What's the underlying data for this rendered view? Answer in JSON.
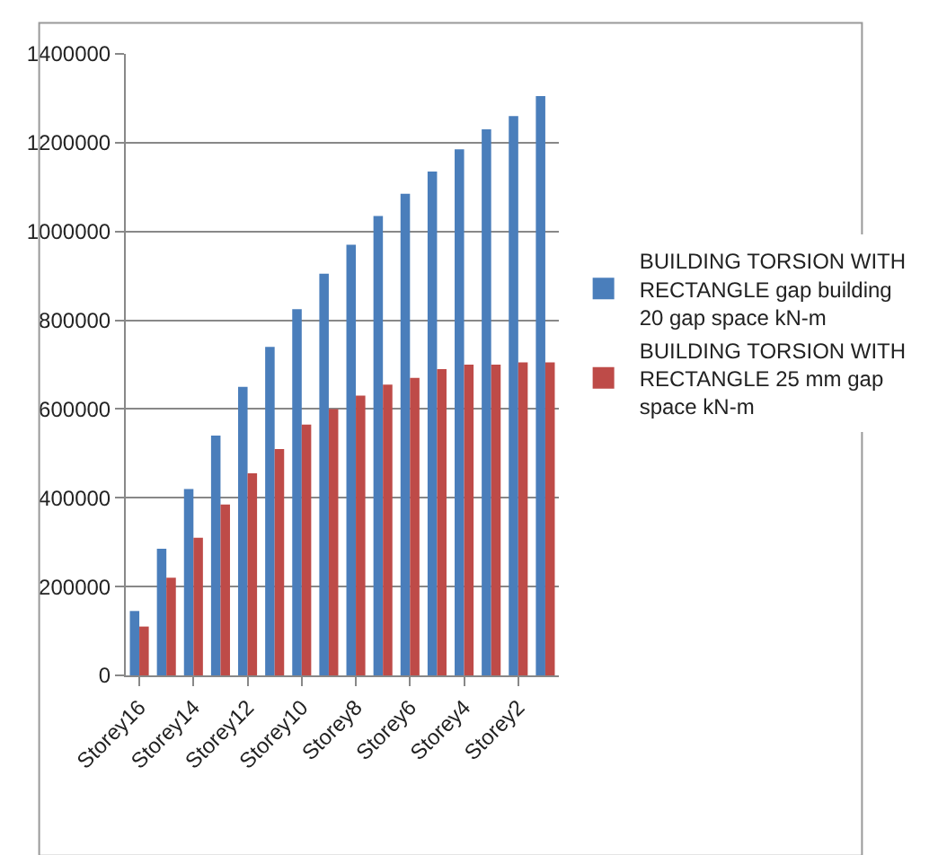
{
  "chart_data": {
    "type": "bar",
    "categories": [
      "Storey16",
      null,
      "Storey14",
      null,
      "Storey12",
      null,
      "Storey10",
      null,
      "Storey8",
      null,
      "Storey6",
      null,
      "Storey4",
      null,
      "Storey2",
      null
    ],
    "series": [
      {
        "name": "BUILDING TORSION WITH RECTANGLE gap building 20 gap space kN-m",
        "color": "#4a7ebb",
        "values": [
          145000,
          285000,
          420000,
          540000,
          650000,
          740000,
          825000,
          905000,
          970000,
          1035000,
          1085000,
          1135000,
          1185000,
          1230000,
          1260000,
          1305000
        ]
      },
      {
        "name": "BUILDING TORSION WITH RECTANGLE 25 mm gap space kN-m",
        "color": "#be4b48",
        "values": [
          110000,
          220000,
          310000,
          385000,
          455000,
          510000,
          565000,
          600000,
          630000,
          655000,
          670000,
          690000,
          700000,
          700000,
          705000,
          705000
        ]
      }
    ],
    "ylim": [
      0,
      1400000
    ],
    "yticks": [
      0,
      200000,
      400000,
      600000,
      800000,
      1000000,
      1200000,
      1400000
    ],
    "grid": "y",
    "legend": "right"
  }
}
